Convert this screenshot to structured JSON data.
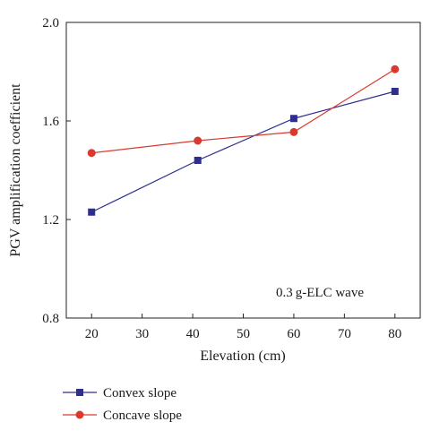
{
  "chart_data": {
    "type": "line",
    "xlabel": "Elevation (cm)",
    "ylabel": "PGV amplification coefficient",
    "annotation": "0.3 g-ELC wave",
    "xlim": [
      15,
      85
    ],
    "ylim": [
      0.8,
      2.0
    ],
    "xticks": [
      20,
      30,
      40,
      50,
      60,
      70,
      80
    ],
    "yticks": [
      0.8,
      1.2,
      1.6,
      2.0
    ],
    "xtick_labels": [
      "20",
      "30",
      "40",
      "50",
      "60",
      "70",
      "80"
    ],
    "ytick_labels": [
      "0.8",
      "1.2",
      "1.6",
      "2.0"
    ],
    "legend_position": "below-left",
    "grid": false,
    "series": [
      {
        "name": "Convex slope",
        "marker": "square",
        "color": "#2e2e8f",
        "x": [
          20,
          41,
          60,
          80
        ],
        "y": [
          1.23,
          1.44,
          1.61,
          1.72
        ]
      },
      {
        "name": "Concave slope",
        "marker": "circle",
        "color": "#d93a2e",
        "x": [
          20,
          41,
          60,
          80
        ],
        "y": [
          1.47,
          1.52,
          1.555,
          1.81
        ]
      }
    ]
  }
}
